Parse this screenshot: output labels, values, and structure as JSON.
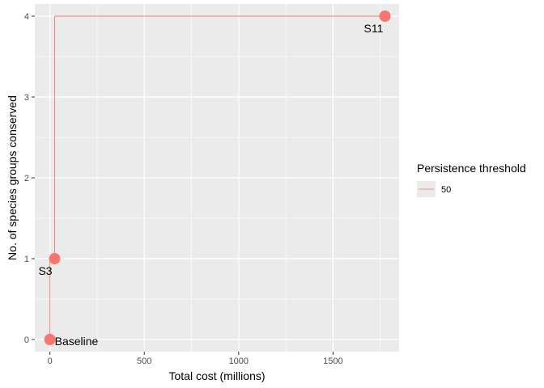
{
  "chart_data": {
    "type": "line",
    "title": "",
    "xlabel": "Total cost (millions)",
    "ylabel": "No. of species groups conserved",
    "xlim": [
      -80,
      1850
    ],
    "ylim": [
      -0.15,
      4.15
    ],
    "x_ticks": [
      0,
      500,
      1000,
      1500
    ],
    "y_ticks": [
      0,
      1,
      2,
      3,
      4
    ],
    "grid": true,
    "step": true,
    "colors": {
      "series": "#F8766D",
      "panel": "#EBEBEB",
      "grid": "#FFFFFF"
    },
    "legend": {
      "title": "Persistence threshold",
      "position": "right"
    },
    "series": [
      {
        "name": "50",
        "points": [
          {
            "x": 0,
            "y": 0,
            "label": "Baseline"
          },
          {
            "x": 25,
            "y": 1,
            "label": "S3"
          },
          {
            "x": 1775,
            "y": 4,
            "label": "S11"
          }
        ]
      }
    ]
  }
}
